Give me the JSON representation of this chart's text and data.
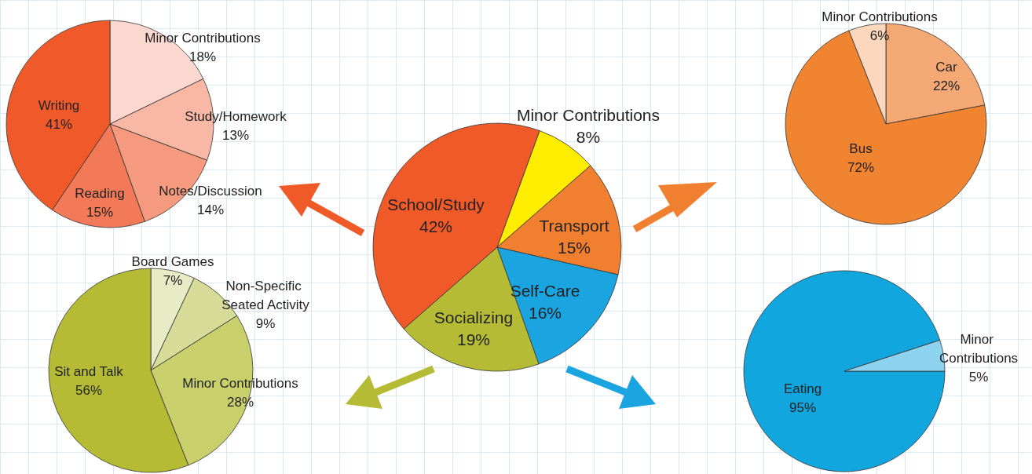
{
  "chart_data": [
    {
      "type": "pie",
      "categories": [
        "Minor Contributions",
        "Study/Homework",
        "Notes/Discussion",
        "Reading",
        "Writing"
      ],
      "values": [
        18,
        13,
        14,
        15,
        41
      ],
      "colors": [
        "#fbd8cf",
        "#f8b8a5",
        "#f59a7f",
        "#f27a58",
        "#f05a2b"
      ],
      "value_labels": [
        "18%",
        "13%",
        "14%",
        "15%",
        "41%"
      ]
    },
    {
      "type": "pie",
      "categories": [
        "Minor Contributions",
        "Transport",
        "Self-Care",
        "Socializing",
        "School/Study"
      ],
      "values": [
        8,
        15,
        16,
        19,
        42
      ],
      "colors": [
        "#ffed00",
        "#f08030",
        "#1ba5e0",
        "#b5bb35",
        "#f05a28"
      ],
      "value_labels": [
        "8%",
        "15%",
        "16%",
        "19%",
        "42%"
      ]
    },
    {
      "type": "pie",
      "categories": [
        "Car",
        "Bus",
        "Minor Contributions"
      ],
      "values": [
        22,
        72,
        6
      ],
      "colors": [
        "#f4a873",
        "#f08431",
        "#fad7bd"
      ],
      "value_labels": [
        "22%",
        "72%",
        "6%"
      ]
    },
    {
      "type": "pie",
      "categories": [
        "Board Games",
        "Non-Specific Seated Activity",
        "Minor Contributions",
        "Sit and Talk"
      ],
      "values": [
        7,
        9,
        28,
        56
      ],
      "colors": [
        "#e7ebc6",
        "#d6dc98",
        "#c9cf6a",
        "#b5bb35"
      ],
      "value_labels": [
        "7%",
        "9%",
        "28%",
        "56%"
      ]
    },
    {
      "type": "pie",
      "categories": [
        "Eating",
        "Minor Contributions"
      ],
      "values": [
        95,
        5
      ],
      "colors": [
        "#12a6df",
        "#8dd3f0"
      ],
      "value_labels": [
        "95%",
        "5%"
      ]
    }
  ]
}
